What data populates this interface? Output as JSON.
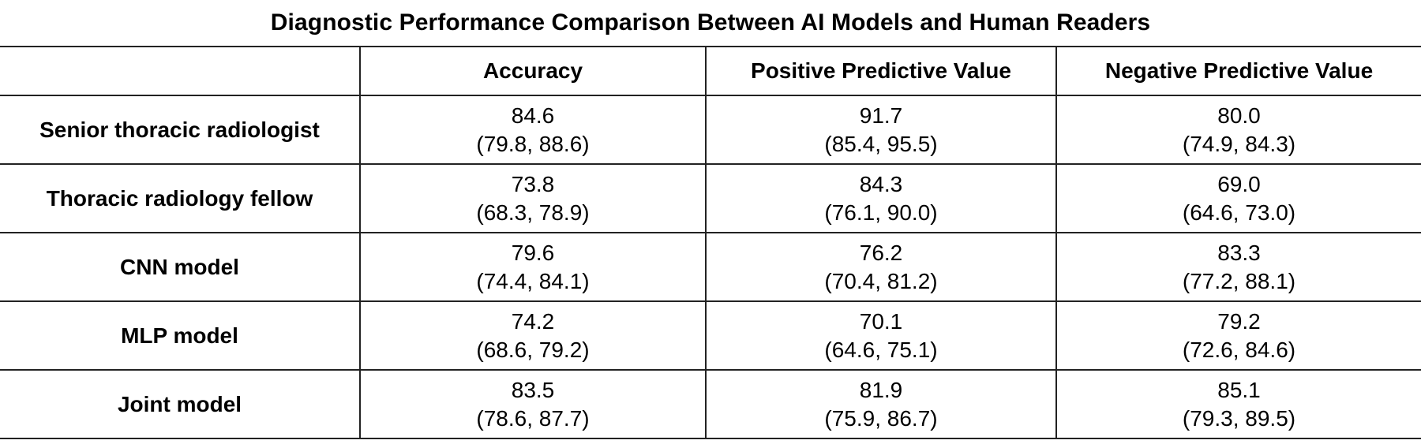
{
  "title": "Diagnostic Performance Comparison Between AI Models and Human Readers",
  "columns": [
    "",
    "Accuracy",
    "Positive Predictive Value",
    "Negative Predictive Value"
  ],
  "rows": [
    {
      "label": "Senior thoracic radiologist",
      "accuracy": {
        "value": "84.6",
        "ci": "(79.8, 88.6)"
      },
      "ppv": {
        "value": "91.7",
        "ci": "(85.4, 95.5)"
      },
      "npv": {
        "value": "80.0",
        "ci": "(74.9, 84.3)"
      }
    },
    {
      "label": "Thoracic radiology fellow",
      "accuracy": {
        "value": "73.8",
        "ci": "(68.3, 78.9)"
      },
      "ppv": {
        "value": "84.3",
        "ci": "(76.1, 90.0)"
      },
      "npv": {
        "value": "69.0",
        "ci": "(64.6, 73.0)"
      }
    },
    {
      "label": "CNN model",
      "accuracy": {
        "value": "79.6",
        "ci": "(74.4, 84.1)"
      },
      "ppv": {
        "value": "76.2",
        "ci": "(70.4, 81.2)"
      },
      "npv": {
        "value": "83.3",
        "ci": "(77.2, 88.1)"
      }
    },
    {
      "label": "MLP model",
      "accuracy": {
        "value": "74.2",
        "ci": "(68.6, 79.2)"
      },
      "ppv": {
        "value": "70.1",
        "ci": "(64.6, 75.1)"
      },
      "npv": {
        "value": "79.2",
        "ci": "(72.6, 84.6)"
      }
    },
    {
      "label": "Joint model",
      "accuracy": {
        "value": "83.5",
        "ci": "(78.6, 87.7)"
      },
      "ppv": {
        "value": "81.9",
        "ci": "(75.9, 86.7)"
      },
      "npv": {
        "value": "85.1",
        "ci": "(79.3, 89.5)"
      }
    }
  ]
}
